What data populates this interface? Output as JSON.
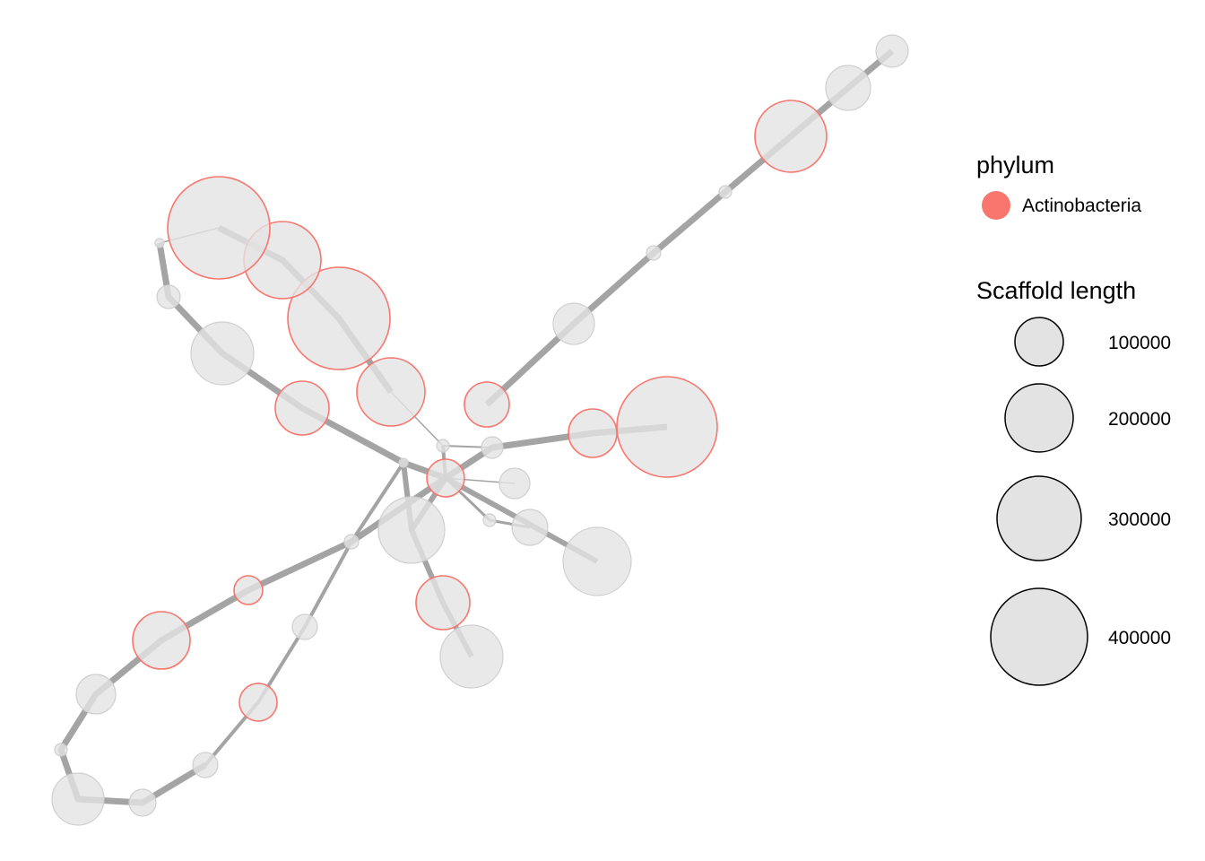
{
  "legend": {
    "phylum_title": "phylum",
    "phylum_items": [
      {
        "label": "Actinobacteria",
        "color": "#F8766D"
      }
    ],
    "size_title": "Scaffold length",
    "size_items": [
      {
        "label": "100000",
        "value": 100000
      },
      {
        "label": "200000",
        "value": 200000
      },
      {
        "label": "300000",
        "value": 300000
      },
      {
        "label": "400000",
        "value": 400000
      }
    ]
  },
  "colors": {
    "node_fill": "#e3e3e3",
    "node_outline_default": "#cfcfcf",
    "node_outline_highlight": "#F8766D",
    "edge": "#9a9a9a"
  }
}
